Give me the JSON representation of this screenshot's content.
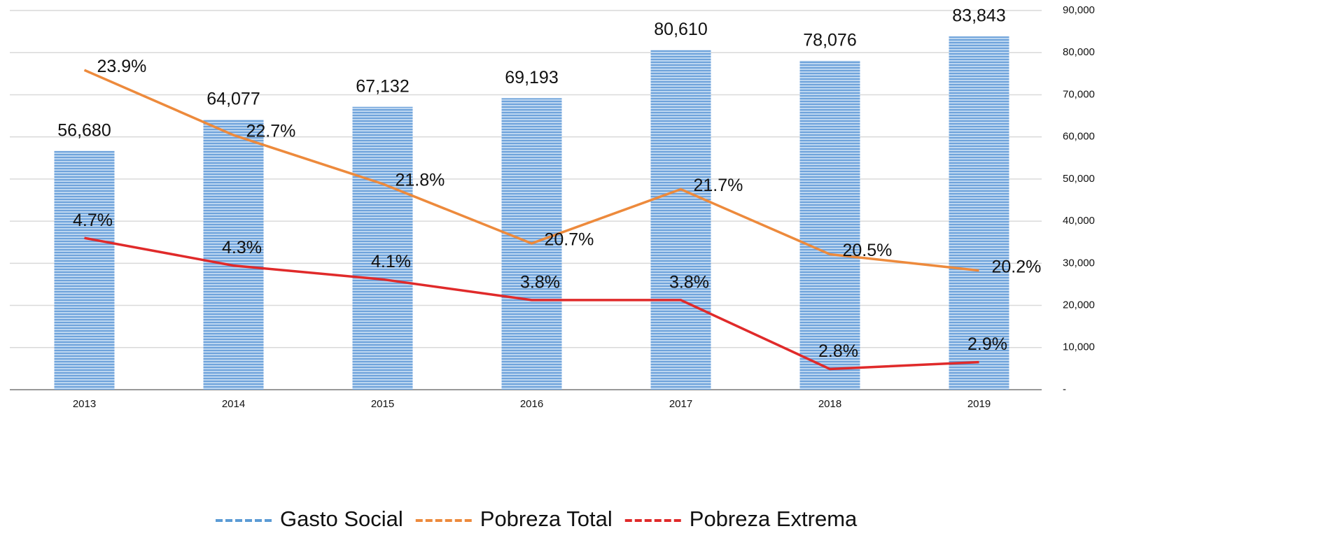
{
  "chart_data": {
    "type": "bar_line",
    "categories": [
      "2013",
      "2014",
      "2015",
      "2016",
      "2017",
      "2018",
      "2019"
    ],
    "series": [
      {
        "name": "Gasto Social",
        "type": "bar",
        "axis": "y2",
        "color": "#8fb8e3",
        "values": [
          56680,
          64077,
          67132,
          69193,
          80610,
          78076,
          83843
        ],
        "value_labels": [
          "56,680",
          "64,077",
          "67,132",
          "69,193",
          "80,610",
          "78,076",
          "83,843"
        ]
      },
      {
        "name": "Pobreza Total",
        "type": "line",
        "axis": "y",
        "color": "#ed8a3c",
        "values": [
          23.9,
          22.7,
          21.8,
          20.7,
          21.7,
          20.5,
          20.2
        ],
        "value_labels": [
          "23.9%",
          "22.7%",
          "21.8%",
          "20.7%",
          "21.7%",
          "20.5%",
          "20.2%"
        ]
      },
      {
        "name": "Pobreza Extrema",
        "type": "line",
        "axis": "y3",
        "color": "#e02a2a",
        "values": [
          4.7,
          4.3,
          4.1,
          3.8,
          3.8,
          2.8,
          2.9
        ],
        "value_labels": [
          "4.7%",
          "4.3%",
          "4.1%",
          "3.8%",
          "3.8%",
          "2.8%",
          "2.9%"
        ]
      }
    ],
    "ylim": [
      18,
      25
    ],
    "y3lim": [
      2.5,
      8
    ],
    "y2lim": [
      0,
      90000
    ],
    "y2ticks": [
      {
        "value": 0,
        "label": "-"
      },
      {
        "value": 10000,
        "label": "10,000"
      },
      {
        "value": 20000,
        "label": "20,000"
      },
      {
        "value": 30000,
        "label": "30,000"
      },
      {
        "value": 40000,
        "label": "40,000"
      },
      {
        "value": 50000,
        "label": "50,000"
      },
      {
        "value": 60000,
        "label": "60,000"
      },
      {
        "value": 70000,
        "label": "70,000"
      },
      {
        "value": 80000,
        "label": "80,000"
      },
      {
        "value": 90000,
        "label": "90,000"
      }
    ],
    "grid": true,
    "legend": "bottom"
  }
}
